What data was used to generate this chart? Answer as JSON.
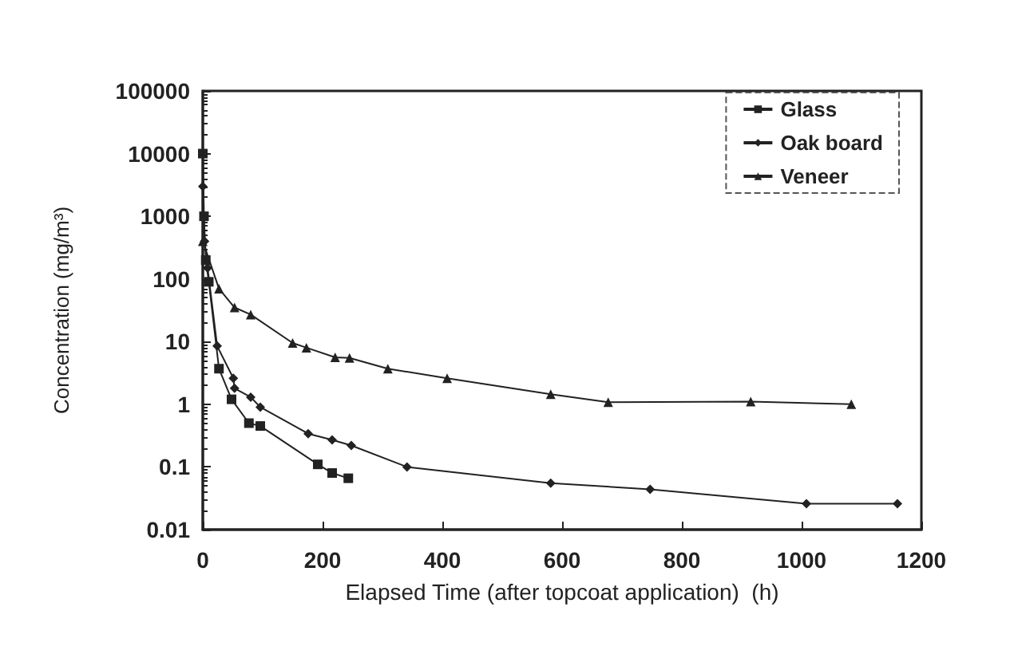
{
  "chart_data": {
    "type": "line",
    "xlabel": "Elapsed Time (after topcoat application)  (h)",
    "ylabel": "Concentration (mg/m³)",
    "log": "y",
    "grid": false,
    "legend": "top right",
    "line_style": "solid",
    "xlim": [
      0,
      1200
    ],
    "xticks": [
      0,
      200,
      400,
      600,
      800,
      1000,
      1200
    ],
    "ylim": [
      0.01,
      100000
    ],
    "yticks": [
      0.01,
      0.1,
      1,
      10,
      100,
      1000,
      10000,
      100000
    ],
    "series": [
      {
        "name": "Glass",
        "color": "#222222",
        "marker": "square",
        "x": [
          0,
          2,
          5,
          10,
          27,
          48,
          77,
          96,
          192,
          216,
          243
        ],
        "values": [
          10000,
          1000,
          200,
          90,
          3.7,
          1.2,
          0.5,
          0.45,
          0.11,
          0.08,
          0.066
        ]
      },
      {
        "name": "Oak board",
        "color": "#222222",
        "marker": "diamond",
        "x": [
          0,
          3,
          8,
          24,
          51,
          53,
          80,
          96,
          176,
          216,
          248,
          341,
          581,
          747,
          1008,
          1160
        ],
        "values": [
          3000,
          400,
          150,
          8.5,
          2.6,
          1.8,
          1.3,
          0.9,
          0.34,
          0.27,
          0.22,
          0.1,
          0.055,
          0.044,
          0.026,
          0.026
        ]
      },
      {
        "name": "Veneer",
        "color": "#222222",
        "marker": "triangle",
        "x": [
          0,
          27,
          53,
          80,
          150,
          173,
          221,
          245,
          309,
          408,
          581,
          677,
          915,
          1083
        ],
        "values": [
          400,
          70,
          35,
          27,
          9.5,
          8,
          5.6,
          5.5,
          3.7,
          2.6,
          1.45,
          1.08,
          1.1,
          1.0
        ]
      }
    ]
  }
}
